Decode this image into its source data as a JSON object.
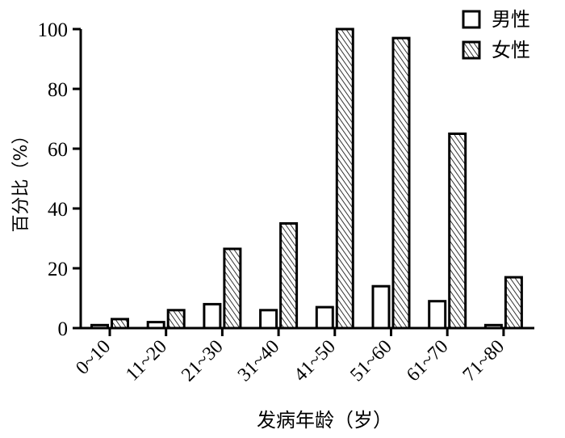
{
  "chart_data": {
    "type": "bar",
    "categories": [
      "0~10",
      "11~20",
      "21~30",
      "31~40",
      "41~50",
      "51~60",
      "61~70",
      "71~80"
    ],
    "series": [
      {
        "name": "男性",
        "values": [
          1,
          2,
          8,
          6,
          7,
          14,
          9,
          1
        ],
        "fill": "#ffffff",
        "pattern": "none"
      },
      {
        "name": "女性",
        "values": [
          3,
          6,
          26.5,
          35,
          100,
          97,
          65,
          17
        ],
        "fill": "#ffffff",
        "pattern": "diagonal-hatch"
      }
    ],
    "xlabel": "发病年龄（岁）",
    "ylabel": "百分比（%）",
    "ylim": [
      0,
      100
    ],
    "yticks": [
      0,
      20,
      40,
      60,
      80,
      100
    ],
    "grid": false,
    "legend": "top-right",
    "colors": {
      "axis": "#000000",
      "bar_stroke": "#000000",
      "hatch": "#000000"
    }
  }
}
